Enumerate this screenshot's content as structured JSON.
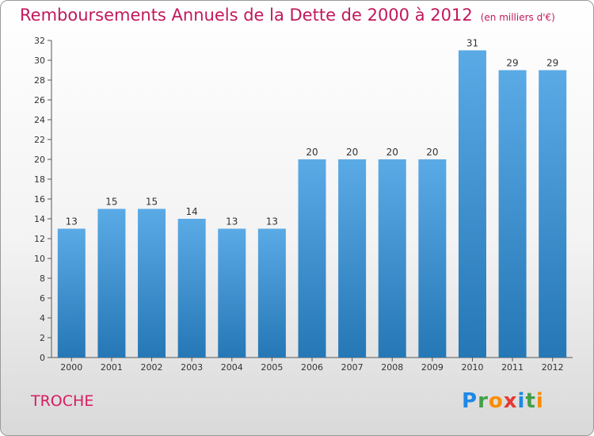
{
  "header": {
    "title": "Remboursements Annuels de la Dette de 2000 à 2012",
    "subtitle": "(en milliers d'€)"
  },
  "footer": {
    "commune": "TROCHE",
    "logo": {
      "text": "Proxiti",
      "letters": [
        {
          "char": "P",
          "color": "#1e88e5"
        },
        {
          "char": "r",
          "color": "#43a047"
        },
        {
          "char": "o",
          "color": "#fb8c00"
        },
        {
          "char": "x",
          "color": "#e53935"
        },
        {
          "char": "i",
          "color": "#1e88e5"
        },
        {
          "char": "t",
          "color": "#43a047"
        },
        {
          "char": "i",
          "color": "#fb8c00"
        }
      ]
    }
  },
  "colors": {
    "bar_top": "#5aaae6",
    "bar_bottom": "#2577b5",
    "title": "#c2185b"
  },
  "chart_data": {
    "type": "bar",
    "title": "Remboursements Annuels de la Dette de 2000 à 2012",
    "subtitle": "(en milliers d'€)",
    "xlabel": "",
    "ylabel": "",
    "categories": [
      "2000",
      "2001",
      "2002",
      "2003",
      "2004",
      "2005",
      "2006",
      "2007",
      "2008",
      "2009",
      "2010",
      "2011",
      "2012"
    ],
    "values": [
      13,
      15,
      15,
      14,
      13,
      13,
      20,
      20,
      20,
      20,
      31,
      29,
      29
    ],
    "ylim": [
      0,
      32
    ],
    "yticks": [
      0,
      2,
      4,
      6,
      8,
      10,
      12,
      14,
      16,
      18,
      20,
      22,
      24,
      26,
      28,
      30,
      32
    ],
    "grid": false,
    "legend": "none"
  }
}
